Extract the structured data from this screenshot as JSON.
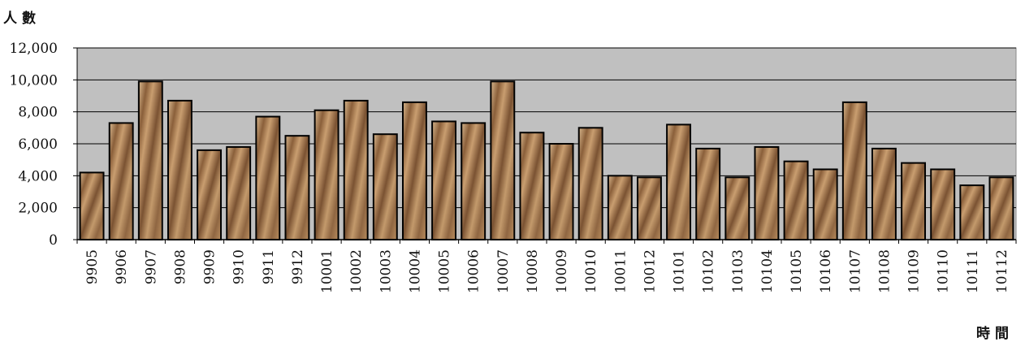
{
  "chart_data": {
    "type": "bar",
    "ylabel": "人數",
    "xlabel": "時間",
    "ylim": [
      0,
      12000
    ],
    "yticks": [
      0,
      2000,
      4000,
      6000,
      8000,
      10000,
      12000
    ],
    "ytick_labels": [
      "0",
      "2,000",
      "4,000",
      "6,000",
      "8,000",
      "10,000",
      "12,000"
    ],
    "grid": true,
    "plot_background": "#c0c0c0",
    "bar_color": "#c49a6c",
    "categories": [
      "9905",
      "9906",
      "9907",
      "9908",
      "9909",
      "9910",
      "9911",
      "9912",
      "10001",
      "10002",
      "10003",
      "10004",
      "10005",
      "10006",
      "10007",
      "10008",
      "10009",
      "10010",
      "10011",
      "10012",
      "10101",
      "10102",
      "10103",
      "10104",
      "10105",
      "10106",
      "10107",
      "10108",
      "10109",
      "10110",
      "10111",
      "10112"
    ],
    "values": [
      4200,
      7300,
      9900,
      8700,
      5600,
      5800,
      7700,
      6500,
      8100,
      8700,
      6600,
      8600,
      7400,
      7300,
      9900,
      6700,
      6000,
      7000,
      4000,
      3900,
      7200,
      5700,
      3900,
      5800,
      4900,
      4400,
      8600,
      5700,
      4800,
      4400,
      3400,
      3900
    ]
  }
}
